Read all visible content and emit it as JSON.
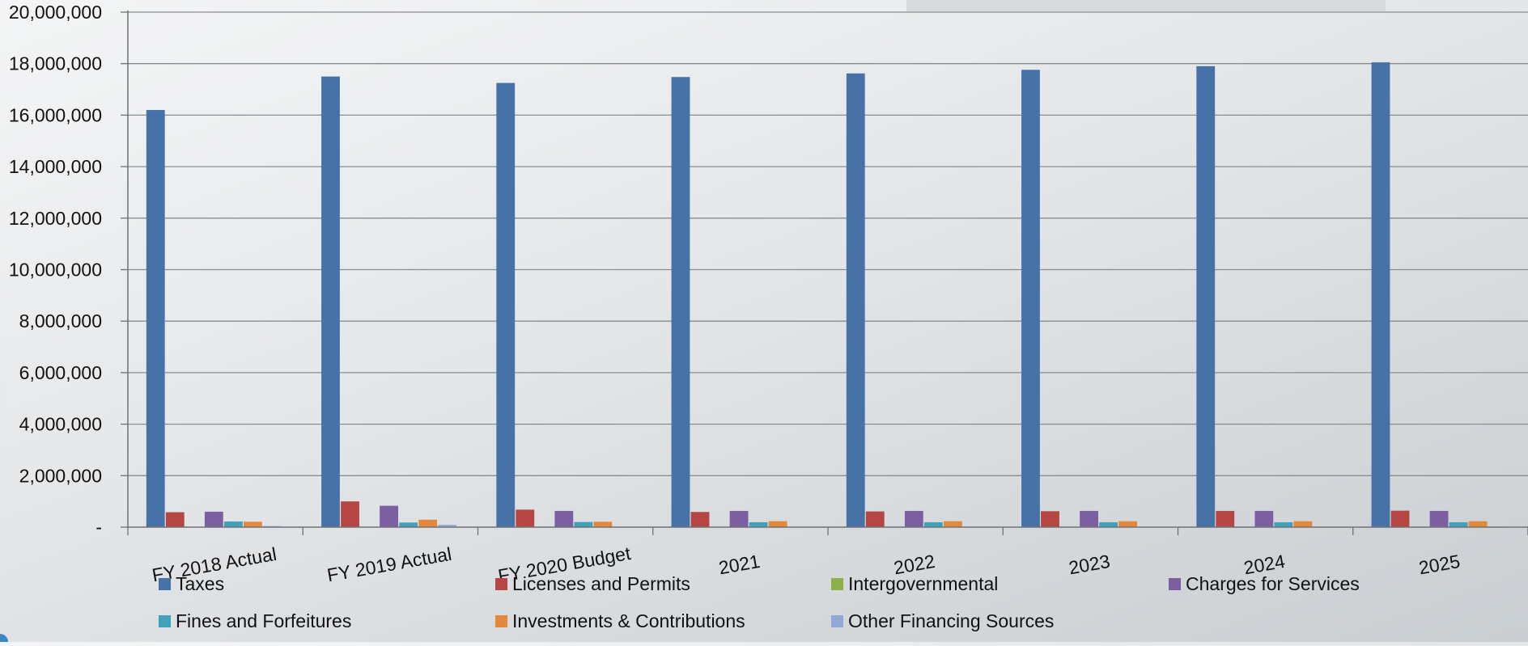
{
  "chart_data": {
    "type": "bar",
    "categories": [
      "FY 2018 Actual",
      "FY 2019 Actual",
      "FY 2020 Budget",
      "2021",
      "2022",
      "2023",
      "2024",
      "2025"
    ],
    "ylim": [
      0,
      20000000
    ],
    "yticks": [
      0,
      2000000,
      4000000,
      6000000,
      8000000,
      10000000,
      12000000,
      14000000,
      16000000,
      18000000,
      20000000
    ],
    "ytick_labels": [
      "-",
      "2,000,000",
      "4,000,000",
      "6,000,000",
      "8,000,000",
      "10,000,000",
      "12,000,000",
      "14,000,000",
      "16,000,000",
      "18,000,000",
      "20,000,000"
    ],
    "grid": true,
    "legend_position": "bottom",
    "series": [
      {
        "name": "Taxes",
        "color": "#4672a8",
        "values": [
          16200000,
          17500000,
          17250000,
          17480000,
          17620000,
          17760000,
          17900000,
          18050000
        ]
      },
      {
        "name": "Licenses and Permits",
        "color": "#b64644",
        "values": [
          580000,
          1000000,
          680000,
          590000,
          610000,
          620000,
          630000,
          640000
        ]
      },
      {
        "name": "Intergovernmental",
        "color": "#8db04b",
        "values": [
          0,
          0,
          0,
          0,
          0,
          0,
          0,
          0
        ]
      },
      {
        "name": "Charges for Services",
        "color": "#7c5fa0",
        "values": [
          600000,
          830000,
          630000,
          630000,
          630000,
          630000,
          630000,
          630000
        ]
      },
      {
        "name": "Fines and Forfeitures",
        "color": "#3fa2ba",
        "values": [
          220000,
          180000,
          200000,
          190000,
          190000,
          190000,
          190000,
          190000
        ]
      },
      {
        "name": "Investments & Contributions",
        "color": "#e4893c",
        "values": [
          210000,
          290000,
          210000,
          230000,
          230000,
          230000,
          230000,
          230000
        ]
      },
      {
        "name": "Other Financing Sources",
        "color": "#92a9d5",
        "values": [
          40000,
          90000,
          0,
          0,
          0,
          0,
          0,
          0
        ]
      }
    ]
  }
}
